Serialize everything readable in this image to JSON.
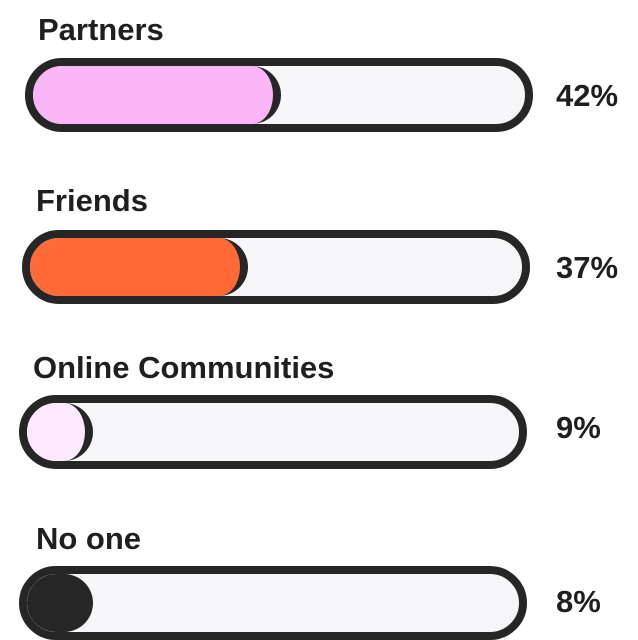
{
  "chart_data": {
    "type": "bar",
    "orientation": "horizontal",
    "categories": [
      "Partners",
      "Friends",
      "Online Communities",
      "No one"
    ],
    "values": [
      42,
      37,
      9,
      8
    ],
    "value_labels": [
      "42%",
      "37%",
      "9%",
      "8%"
    ],
    "colors": [
      "#fbb6f7",
      "#ff6a37",
      "#fde9fd",
      "#262626"
    ],
    "xlim": [
      0,
      100
    ]
  }
}
